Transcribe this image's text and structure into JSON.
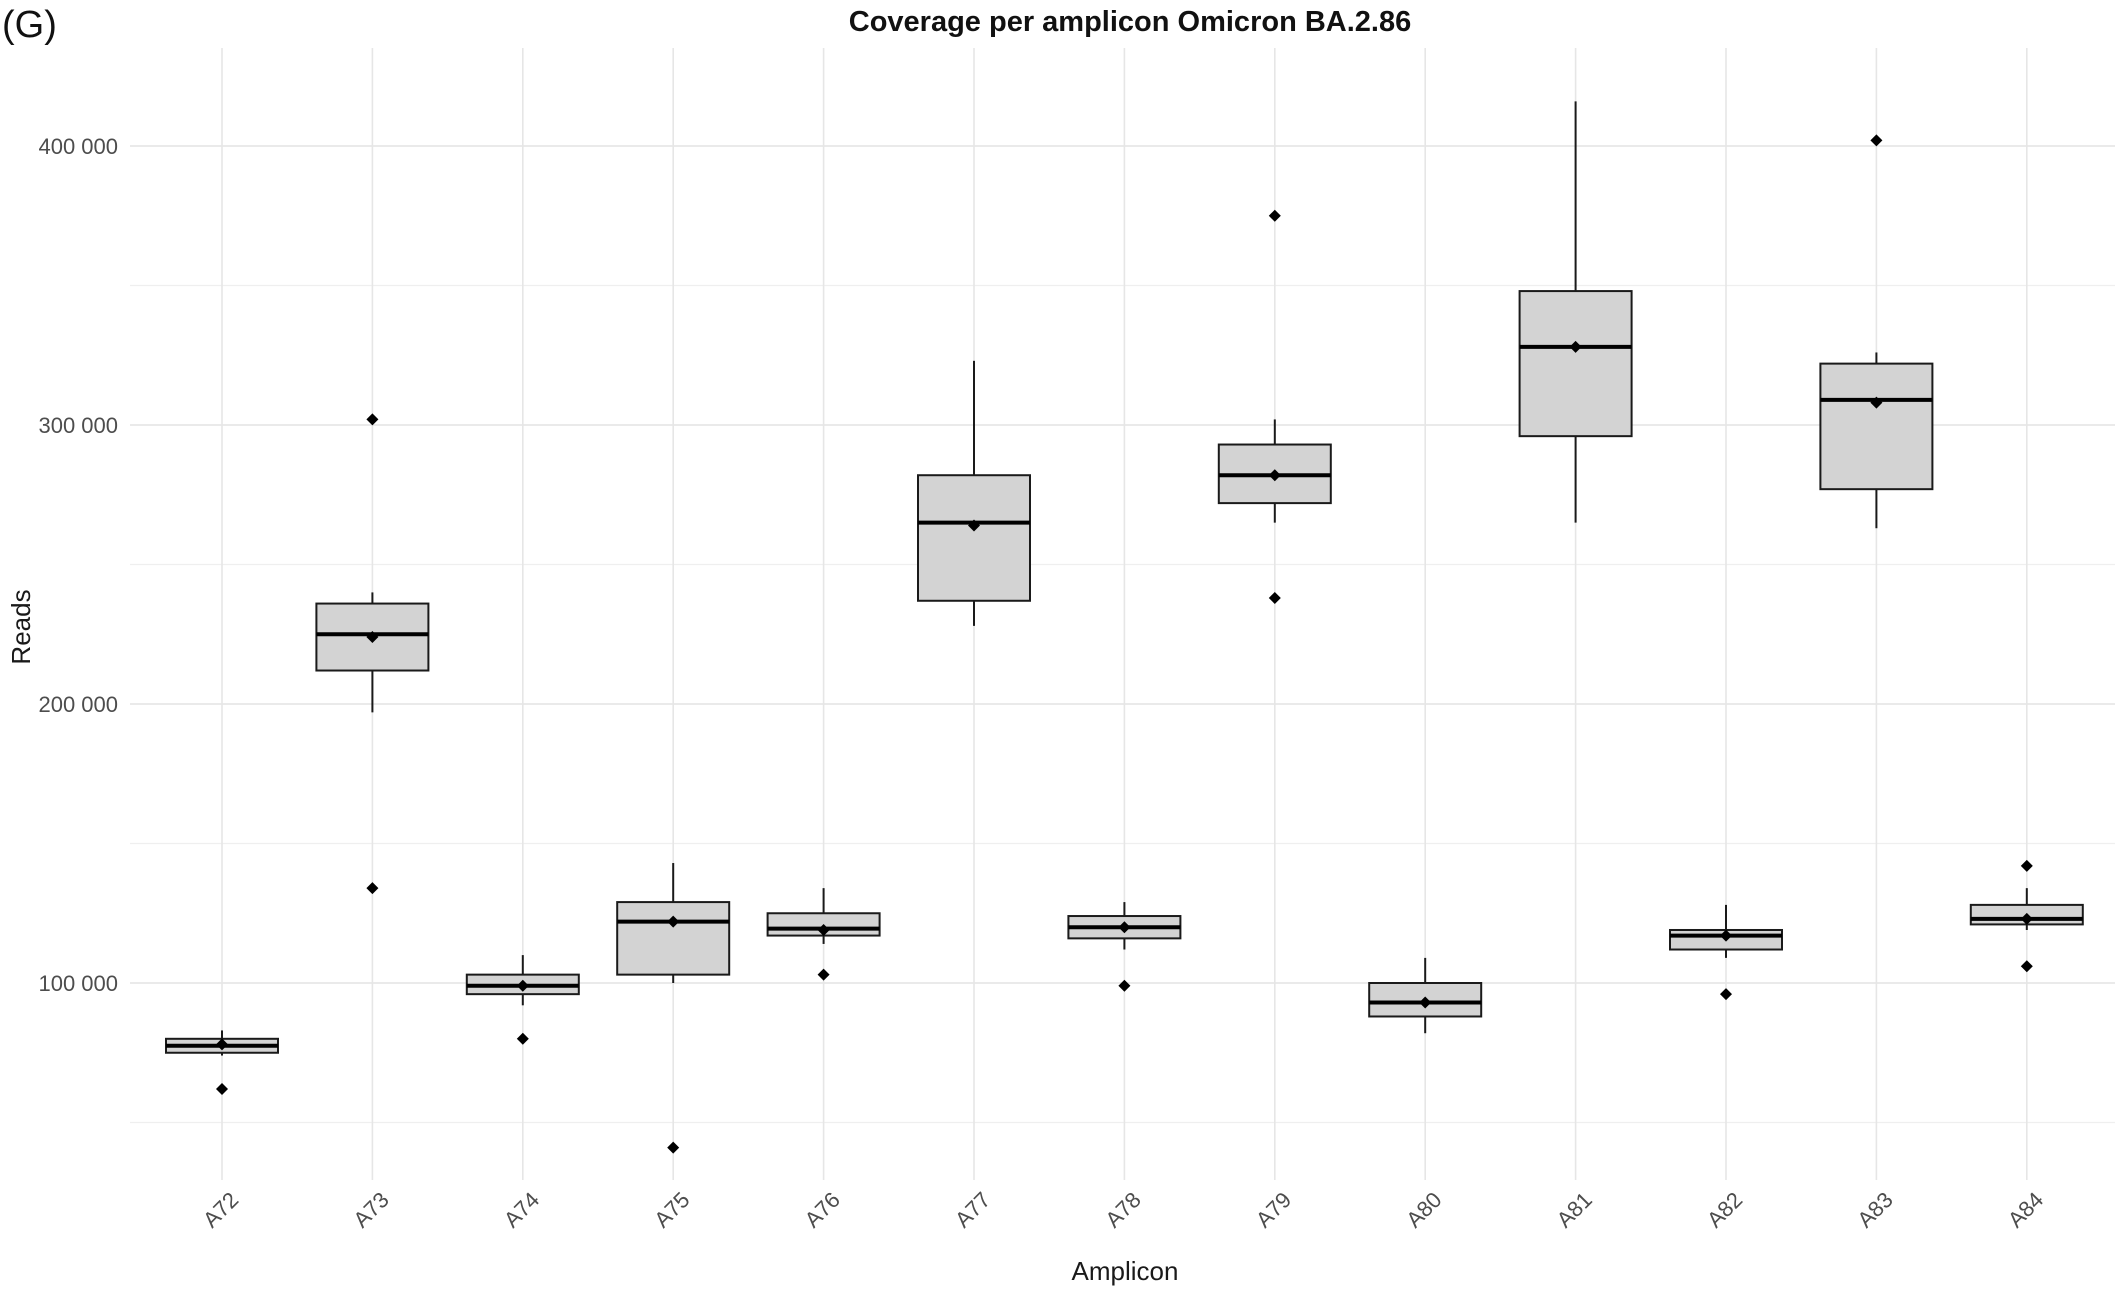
{
  "panel_label": "(G)",
  "chart_data": {
    "type": "boxplot",
    "title": "Coverage per amplicon Omicron BA.2.86",
    "xlabel": "Amplicon",
    "ylabel": "Reads",
    "ylim": [
      25000,
      430000
    ],
    "yticks": [
      100000,
      200000,
      300000,
      400000
    ],
    "ytick_labels": [
      "100 000",
      "200 000",
      "300 000",
      "400 000"
    ],
    "grid": true,
    "box_fill": "#d3d3d3",
    "categories": [
      "A72",
      "A73",
      "A74",
      "A75",
      "A76",
      "A77",
      "A78",
      "A79",
      "A80",
      "A81",
      "A82",
      "A83",
      "A84"
    ],
    "boxes": [
      {
        "amplicon": "A72",
        "whisker_low": 74000,
        "q1": 75000,
        "median": 77500,
        "q3": 80000,
        "whisker_high": 83000,
        "points": [
          78000,
          62000
        ]
      },
      {
        "amplicon": "A73",
        "whisker_low": 197000,
        "q1": 212000,
        "median": 225000,
        "q3": 236000,
        "whisker_high": 240000,
        "points": [
          224000,
          302000,
          134000
        ]
      },
      {
        "amplicon": "A74",
        "whisker_low": 92000,
        "q1": 96000,
        "median": 99000,
        "q3": 103000,
        "whisker_high": 110000,
        "points": [
          99000,
          80000
        ]
      },
      {
        "amplicon": "A75",
        "whisker_low": 100000,
        "q1": 103000,
        "median": 122000,
        "q3": 129000,
        "whisker_high": 143000,
        "points": [
          122000,
          41000
        ]
      },
      {
        "amplicon": "A76",
        "whisker_low": 114000,
        "q1": 117000,
        "median": 119500,
        "q3": 125000,
        "whisker_high": 134000,
        "points": [
          119000,
          103000
        ]
      },
      {
        "amplicon": "A77",
        "whisker_low": 228000,
        "q1": 237000,
        "median": 265000,
        "q3": 282000,
        "whisker_high": 323000,
        "points": [
          264000
        ]
      },
      {
        "amplicon": "A78",
        "whisker_low": 112000,
        "q1": 116000,
        "median": 120000,
        "q3": 124000,
        "whisker_high": 129000,
        "points": [
          120000,
          99000
        ]
      },
      {
        "amplicon": "A79",
        "whisker_low": 265000,
        "q1": 272000,
        "median": 282000,
        "q3": 293000,
        "whisker_high": 302000,
        "points": [
          282000,
          375000,
          238000
        ]
      },
      {
        "amplicon": "A80",
        "whisker_low": 82000,
        "q1": 88000,
        "median": 93000,
        "q3": 100000,
        "whisker_high": 109000,
        "points": [
          93000
        ]
      },
      {
        "amplicon": "A81",
        "whisker_low": 265000,
        "q1": 296000,
        "median": 328000,
        "q3": 348000,
        "whisker_high": 416000,
        "points": [
          328000
        ]
      },
      {
        "amplicon": "A82",
        "whisker_low": 109000,
        "q1": 112000,
        "median": 117000,
        "q3": 119000,
        "whisker_high": 128000,
        "points": [
          117000,
          96000
        ]
      },
      {
        "amplicon": "A83",
        "whisker_low": 263000,
        "q1": 277000,
        "median": 309000,
        "q3": 322000,
        "whisker_high": 326000,
        "points": [
          308000,
          402000
        ]
      },
      {
        "amplicon": "A84",
        "whisker_low": 119000,
        "q1": 121000,
        "median": 123000,
        "q3": 128000,
        "whisker_high": 134000,
        "points": [
          123000,
          142000,
          106000
        ]
      }
    ]
  }
}
